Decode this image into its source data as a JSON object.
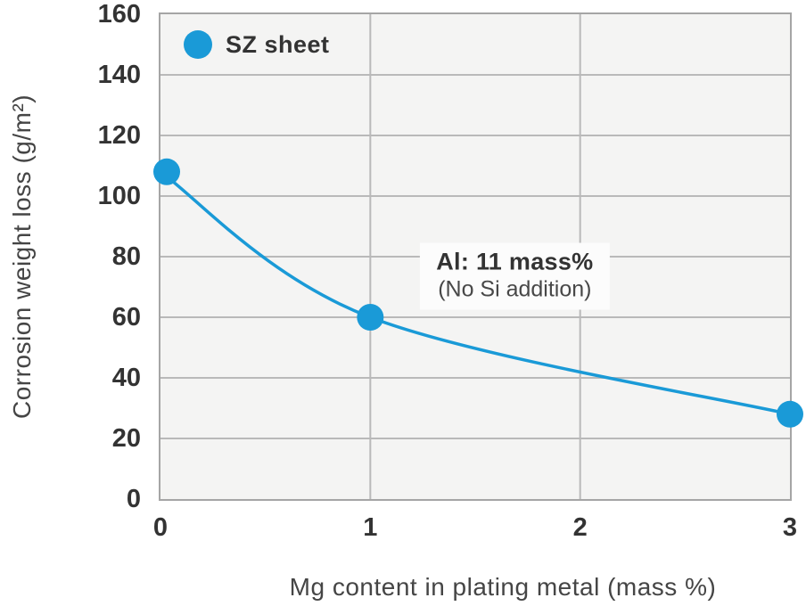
{
  "page": {
    "background": "#ffffff"
  },
  "chart_data": {
    "type": "line",
    "title": "",
    "xlabel": "Mg content in plating metal (mass %)",
    "ylabel": "Corrosion weight loss (g/m²)",
    "xlim": [
      0,
      3
    ],
    "ylim": [
      0,
      160
    ],
    "x_ticks": [
      0,
      1,
      2,
      3
    ],
    "y_ticks": [
      0,
      20,
      40,
      60,
      80,
      100,
      120,
      140,
      160
    ],
    "grid": true,
    "curve_style": "smooth",
    "colors": {
      "accent": "#1a9ad7",
      "plot_background": "#f4f4f3",
      "grid_line": "#b9b9b9",
      "plot_border": "#a5a5a5",
      "tick_text": "#333333",
      "axis_title_text": "#454545",
      "annotation_background": "#fcfcfc"
    },
    "legend": {
      "label": "SZ sheet",
      "position": "top-left-inside"
    },
    "series": [
      {
        "name": "SZ sheet",
        "color": "#1a9ad7",
        "points": [
          {
            "x": 0,
            "y": 108
          },
          {
            "x": 1,
            "y": 60
          },
          {
            "x": 3,
            "y": 28
          }
        ]
      }
    ],
    "annotation": {
      "line1": "Al: 11 mass%",
      "line2": "(No Si addition)",
      "x": 1.68,
      "y": 74
    }
  }
}
